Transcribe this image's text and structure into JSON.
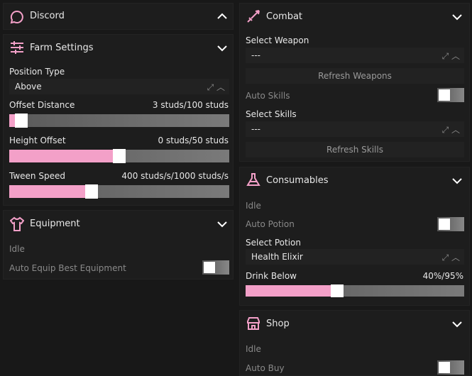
{
  "left": {
    "discord": {
      "title": "Discord"
    },
    "farm_settings": {
      "title": "Farm Settings",
      "position_type": {
        "label": "Position Type",
        "value": "Above"
      },
      "sliders": [
        {
          "label": "Offset Distance",
          "value_label": "3 studs/100 studs"
        },
        {
          "label": "Height Offset",
          "value_label": "0 studs/50 studs"
        },
        {
          "label": "Tween Speed",
          "value_label": "400 studs/s/1000 studs/s"
        }
      ]
    },
    "equipment": {
      "title": "Equipment",
      "status": "Idle",
      "toggle": "Auto Equip Best Equipment"
    }
  },
  "right": {
    "combat": {
      "title": "Combat",
      "select_weapon": {
        "label": "Select Weapon",
        "value": "---"
      },
      "refresh_weapons": "Refresh Weapons",
      "auto_skills": "Auto Skills",
      "select_skills": {
        "label": "Select Skills",
        "value": "---"
      },
      "refresh_skills": "Refresh Skills"
    },
    "consumables": {
      "title": "Consumables",
      "status": "Idle",
      "auto_potion": "Auto Potion",
      "select_potion": {
        "label": "Select Potion",
        "value": "Health Elixir"
      },
      "drink_below": {
        "label": "Drink Below",
        "value_label": "40%/95%"
      }
    },
    "shop": {
      "title": "Shop",
      "status": "Idle",
      "auto_buy": "Auto Buy"
    }
  }
}
